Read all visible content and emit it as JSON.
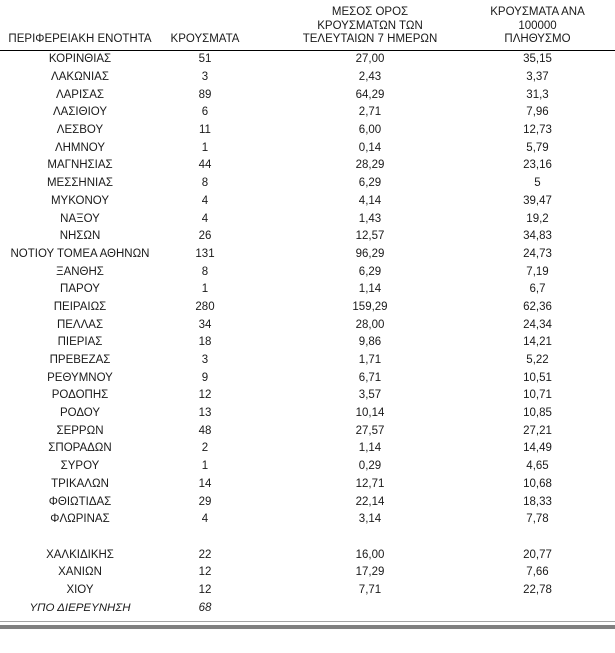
{
  "report_table": {
    "header": {
      "region": "ΠΕΡΙΦΕΡΕΙΑΚΗ ΕΝΟΤΗΤΑ",
      "cases": "ΚΡΟΥΣΜΑΤΑ",
      "avg7_lines": [
        "ΜΕΣΟΣ ΟΡΟΣ",
        "ΚΡΟΥΣΜΑΤΩΝ ΤΩΝ",
        "ΤΕΛΕΥΤΑΙΩΝ 7 ΗΜΕΡΩΝ"
      ],
      "per100k_lines": [
        "ΚΡΟΥΣΜΑΤΑ ΑΝΑ",
        "100000 ΠΛΗΘΥΣΜΟ"
      ]
    },
    "rows": [
      {
        "region": "ΚΟΡΙΝΘΙΑΣ",
        "cases": "51",
        "avg7": "27,00",
        "per100k": "35,15"
      },
      {
        "region": "ΛΑΚΩΝΙΑΣ",
        "cases": "3",
        "avg7": "2,43",
        "per100k": "3,37"
      },
      {
        "region": "ΛΑΡΙΣΑΣ",
        "cases": "89",
        "avg7": "64,29",
        "per100k": "31,3"
      },
      {
        "region": "ΛΑΣΙΘΙΟΥ",
        "cases": "6",
        "avg7": "2,71",
        "per100k": "7,96"
      },
      {
        "region": "ΛΕΣΒΟΥ",
        "cases": "11",
        "avg7": "6,00",
        "per100k": "12,73"
      },
      {
        "region": "ΛΗΜΝΟΥ",
        "cases": "1",
        "avg7": "0,14",
        "per100k": "5,79"
      },
      {
        "region": "ΜΑΓΝΗΣΙΑΣ",
        "cases": "44",
        "avg7": "28,29",
        "per100k": "23,16"
      },
      {
        "region": "ΜΕΣΣΗΝΙΑΣ",
        "cases": "8",
        "avg7": "6,29",
        "per100k": "5"
      },
      {
        "region": "ΜΥΚΟΝΟΥ",
        "cases": "4",
        "avg7": "4,14",
        "per100k": "39,47"
      },
      {
        "region": "ΝΑΞΟΥ",
        "cases": "4",
        "avg7": "1,43",
        "per100k": "19,2"
      },
      {
        "region": "ΝΗΣΩΝ",
        "cases": "26",
        "avg7": "12,57",
        "per100k": "34,83"
      },
      {
        "region": "ΝΟΤΙΟΥ ΤΟΜΕΑ ΑΘΗΝΩΝ",
        "cases": "131",
        "avg7": "96,29",
        "per100k": "24,73"
      },
      {
        "region": "ΞΑΝΘΗΣ",
        "cases": "8",
        "avg7": "6,29",
        "per100k": "7,19"
      },
      {
        "region": "ΠΑΡΟΥ",
        "cases": "1",
        "avg7": "1,14",
        "per100k": "6,7"
      },
      {
        "region": "ΠΕΙΡΑΙΩΣ",
        "cases": "280",
        "avg7": "159,29",
        "per100k": "62,36"
      },
      {
        "region": "ΠΕΛΛΑΣ",
        "cases": "34",
        "avg7": "28,00",
        "per100k": "24,34"
      },
      {
        "region": "ΠΙΕΡΙΑΣ",
        "cases": "18",
        "avg7": "9,86",
        "per100k": "14,21"
      },
      {
        "region": "ΠΡΕΒΕΖΑΣ",
        "cases": "3",
        "avg7": "1,71",
        "per100k": "5,22"
      },
      {
        "region": "ΡΕΘΥΜΝΟΥ",
        "cases": "9",
        "avg7": "6,71",
        "per100k": "10,51"
      },
      {
        "region": "ΡΟΔΟΠΗΣ",
        "cases": "12",
        "avg7": "3,57",
        "per100k": "10,71"
      },
      {
        "region": "ΡΟΔΟΥ",
        "cases": "13",
        "avg7": "10,14",
        "per100k": "10,85"
      },
      {
        "region": "ΣΕΡΡΩΝ",
        "cases": "48",
        "avg7": "27,57",
        "per100k": "27,21"
      },
      {
        "region": "ΣΠΟΡΑΔΩΝ",
        "cases": "2",
        "avg7": "1,14",
        "per100k": "14,49"
      },
      {
        "region": "ΣΥΡΟΥ",
        "cases": "1",
        "avg7": "0,29",
        "per100k": "4,65"
      },
      {
        "region": "ΤΡΙΚΑΛΩΝ",
        "cases": "14",
        "avg7": "12,71",
        "per100k": "10,68"
      },
      {
        "region": "ΦΘΙΩΤΙΔΑΣ",
        "cases": "29",
        "avg7": "22,14",
        "per100k": "18,33"
      },
      {
        "region": "ΦΛΩΡΙΝΑΣ",
        "cases": "4",
        "avg7": "3,14",
        "per100k": "7,78"
      },
      {
        "region": "ΧΑΛΚΙΔΙΚΗΣ",
        "cases": "22",
        "avg7": "16,00",
        "per100k": "20,77",
        "spacer_before": true
      },
      {
        "region": "ΧΑΝΙΩΝ",
        "cases": "12",
        "avg7": "17,29",
        "per100k": "7,66"
      },
      {
        "region": "ΧΙΟΥ",
        "cases": "12",
        "avg7": "7,71",
        "per100k": "22,78"
      },
      {
        "region": "ΥΠΟ ΔΙΕΡΕΥΝΗΣΗ",
        "cases": "68",
        "avg7": "",
        "per100k": "",
        "italic": true
      }
    ],
    "styles": {
      "rule_color": "#000000",
      "bottom_thin_color": "#a3a3a3",
      "bottom_thick_color": "#808080",
      "text_color": "#1a1a1a"
    }
  }
}
